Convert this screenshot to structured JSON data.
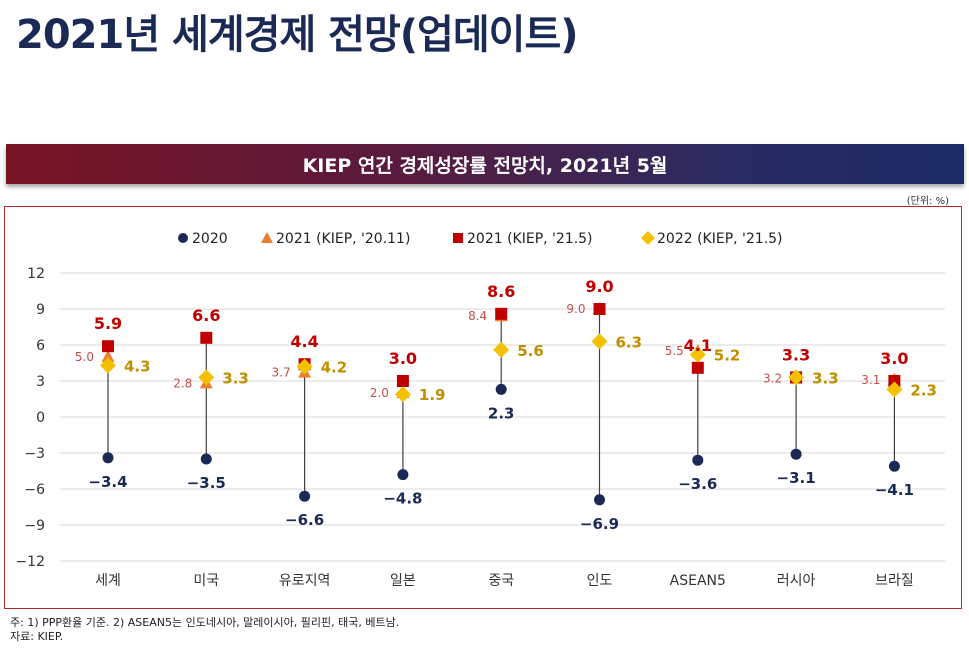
{
  "page": {
    "title": "2021년 세계경제 전망(업데이트)",
    "banner": "KIEP 연간 경제성장률 전망치, 2021년 5월",
    "unit": "(단위: %)",
    "note1": "주: 1) PPP환율 기준. 2) ASEAN5는 인도네시아, 말레이시아, 필리핀, 태국, 베트남.",
    "note2": "자료: KIEP."
  },
  "colors": {
    "navy": "#1b2a55",
    "red": "#c00000",
    "orange": "#ed7d31",
    "gold": "#f5c000",
    "gold_text": "#bf8f00",
    "grid": "#d9d9d9",
    "stem": "#404040"
  },
  "chart_data": {
    "type": "scatter",
    "title": "KIEP 연간 경제성장률 전망치, 2021년 5월",
    "xlabel": "",
    "ylabel": "",
    "ylim": [
      -12,
      12
    ],
    "yticks": [
      12,
      9,
      6,
      3,
      0,
      -3,
      -6,
      -9,
      -12
    ],
    "ytick_labels": [
      "12",
      "9",
      "6",
      "3",
      "0",
      "−3",
      "−6",
      "−9",
      "−12"
    ],
    "grid": true,
    "legend_position": "top",
    "categories": [
      "세계",
      "미국",
      "유로지역",
      "일본",
      "중국",
      "인도",
      "ASEAN5",
      "러시아",
      "브라질"
    ],
    "series": [
      {
        "name": "2020",
        "marker": "circle",
        "values": [
          -3.4,
          -3.5,
          -6.6,
          -4.8,
          2.3,
          -6.9,
          -3.6,
          -3.1,
          -4.1
        ],
        "labels": [
          "−3.4",
          "−3.5",
          "−6.6",
          "−4.8",
          "2.3",
          "−6.9",
          "−3.6",
          "−3.1",
          "−4.1"
        ]
      },
      {
        "name": "2021 (KIEP, '20.11)",
        "marker": "triangle",
        "values": [
          5.0,
          2.8,
          3.7,
          2.0,
          8.4,
          9.0,
          5.5,
          3.2,
          3.1
        ],
        "labels": [
          "5.0",
          "2.8",
          "3.7",
          "2.0",
          "8.4",
          "9.0",
          "5.5",
          "3.2",
          "3.1"
        ]
      },
      {
        "name": "2021 (KIEP, '21.5)",
        "marker": "square",
        "values": [
          5.9,
          6.6,
          4.4,
          3.0,
          8.6,
          9.0,
          4.1,
          3.3,
          3.0
        ],
        "labels": [
          "5.9",
          "6.6",
          "4.4",
          "3.0",
          "8.6",
          "9.0",
          "4.1",
          "3.3",
          "3.0"
        ]
      },
      {
        "name": "2022 (KIEP, '21.5)",
        "marker": "diamond",
        "values": [
          4.3,
          3.3,
          4.2,
          1.9,
          5.6,
          6.3,
          5.2,
          3.3,
          2.3
        ],
        "labels": [
          "4.3",
          "3.3",
          "4.2",
          "1.9",
          "5.6",
          "6.3",
          "5.2",
          "3.3",
          "2.3"
        ]
      }
    ]
  }
}
